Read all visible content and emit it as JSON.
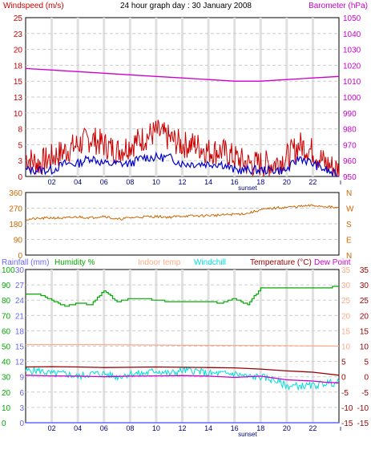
{
  "header": {
    "title": "24 hour graph day : 30 January 2008",
    "windspeed_label": "Windspeed (m/s)",
    "barometer_label": "Barometer (hPa)"
  },
  "colors": {
    "windspeed": "#cc0000",
    "wind_avg": "#0000cc",
    "barometer": "#cc00cc",
    "direction": "#cc6600",
    "rainfall": "#6666ff",
    "humidity": "#00aa00",
    "indoor": "#ffaa88",
    "windchill": "#00dddd",
    "temperature": "#990000",
    "dewpoint": "#cc00cc",
    "grid": "#cccccc",
    "axis_text": "#000080"
  },
  "chart_data": [
    {
      "type": "line",
      "title": "24 hour graph day : 30 January 2008",
      "x_ticks": [
        "02",
        "04",
        "06",
        "08",
        "10",
        "12",
        "14",
        "16",
        "18",
        "20",
        "22"
      ],
      "x_sunrise_sunset": [
        "sunset"
      ],
      "ylabel_left": "Windspeed (m/s)",
      "ylim_left": [
        0,
        25
      ],
      "yticks_left": [
        "25",
        "23",
        "20",
        "18",
        "15",
        "13",
        "10",
        "8",
        "5",
        "3",
        "0"
      ],
      "ylabel_right": "Barometer (hPa)",
      "ylim_right": [
        950,
        1050
      ],
      "yticks_right": [
        "1050",
        "1040",
        "1030",
        "1020",
        "1010",
        "1000",
        "990",
        "980",
        "970",
        "960",
        "950"
      ],
      "series": [
        {
          "name": "Windspeed (m/s)",
          "role": "gust",
          "hours": [
            0,
            1,
            2,
            3,
            4,
            5,
            6,
            7,
            8,
            9,
            10,
            11,
            12,
            13,
            14,
            15,
            16,
            17,
            18,
            19,
            20,
            21,
            22,
            23,
            24
          ],
          "values": [
            3,
            2,
            3,
            4,
            5,
            6,
            5,
            4,
            5,
            6,
            7,
            6,
            5,
            5,
            4,
            4,
            3,
            2,
            2,
            2,
            3,
            5,
            4,
            2,
            1
          ]
        },
        {
          "name": "Windspeed (m/s)",
          "role": "average",
          "hours": [
            0,
            1,
            2,
            3,
            4,
            5,
            6,
            7,
            8,
            9,
            10,
            11,
            12,
            13,
            14,
            15,
            16,
            17,
            18,
            19,
            20,
            21,
            22,
            23,
            24
          ],
          "values": [
            1,
            1,
            1,
            2,
            2,
            3,
            2,
            2,
            2,
            3,
            3,
            3,
            2,
            2,
            2,
            2,
            1,
            1,
            1,
            1,
            1,
            3,
            2,
            1,
            0
          ]
        },
        {
          "name": "Barometer (hPa)",
          "hours": [
            0,
            2,
            4,
            6,
            8,
            10,
            12,
            14,
            16,
            17,
            18,
            20,
            22,
            24
          ],
          "values": [
            1018,
            1017,
            1016,
            1015,
            1014,
            1013,
            1012,
            1011,
            1010,
            1010,
            1010,
            1011,
            1012,
            1013
          ]
        }
      ]
    },
    {
      "type": "line",
      "x_ticks": [],
      "ylim_left": [
        0,
        360
      ],
      "yticks_left": [
        "360",
        "270",
        "180",
        "90",
        "0"
      ],
      "yticks_right": [
        "N",
        "W",
        "S",
        "E",
        "N"
      ],
      "series": [
        {
          "name": "Wind direction",
          "hours": [
            0,
            1,
            2,
            3,
            4,
            5,
            6,
            7,
            8,
            9,
            10,
            11,
            12,
            13,
            14,
            15,
            16,
            17,
            18,
            19,
            20,
            21,
            22,
            23,
            24
          ],
          "values": [
            205,
            210,
            215,
            212,
            220,
            215,
            225,
            205,
            215,
            220,
            222,
            218,
            225,
            225,
            228,
            230,
            235,
            240,
            260,
            270,
            275,
            280,
            285,
            280,
            270
          ]
        }
      ]
    },
    {
      "type": "line",
      "x_ticks": [
        "02",
        "04",
        "06",
        "08",
        "10",
        "12",
        "14",
        "16",
        "18",
        "20",
        "22"
      ],
      "x_sunrise_sunset": [
        "sunset"
      ],
      "legend": [
        "Rainfall (mm)",
        "Humidity %",
        "Indoor temp",
        "Windchill",
        "Temperature (°C)",
        "Dew Point"
      ],
      "yticks_humidity": [
        "100",
        "90",
        "80",
        "70",
        "60",
        "50",
        "40",
        "30",
        "20",
        "10",
        "0"
      ],
      "yticks_rain": [
        "30",
        "27",
        "24",
        "21",
        "18",
        "15",
        "12",
        "9",
        "6",
        "3",
        "0"
      ],
      "yticks_temp": [
        "35",
        "30",
        "25",
        "20",
        "15",
        "10",
        "5",
        "0",
        "-5",
        "-10",
        "-15"
      ],
      "ylim_humidity": [
        0,
        100
      ],
      "ylim_temp": [
        -15,
        35
      ],
      "series": [
        {
          "name": "Humidity %",
          "hours": [
            0,
            1,
            2,
            3,
            4,
            5,
            6,
            7,
            8,
            9,
            10,
            11,
            12,
            13,
            14,
            15,
            16,
            17,
            18,
            19,
            20,
            21,
            22,
            23,
            24
          ],
          "values": [
            84,
            84,
            80,
            76,
            78,
            77,
            86,
            79,
            81,
            81,
            80,
            79,
            79,
            79,
            79,
            78,
            81,
            77,
            88,
            88,
            88,
            88,
            88,
            88,
            89
          ]
        },
        {
          "name": "Rainfall (mm)",
          "hours": [
            0,
            24
          ],
          "values": [
            0,
            0
          ]
        },
        {
          "name": "Indoor temp",
          "hours": [
            0,
            6,
            12,
            18,
            24
          ],
          "values": [
            10.5,
            10.5,
            10.3,
            10.2,
            10.0
          ]
        },
        {
          "name": "Windchill",
          "hours": [
            0,
            1,
            2,
            3,
            4,
            5,
            6,
            7,
            8,
            9,
            10,
            11,
            12,
            13,
            14,
            15,
            16,
            17,
            18,
            19,
            20,
            21,
            22,
            23,
            24
          ],
          "values": [
            2,
            2,
            1,
            1,
            0,
            1,
            1,
            0,
            1,
            1,
            2,
            1,
            2,
            2,
            1,
            1,
            1,
            0,
            0,
            -1,
            -3,
            -3,
            -3,
            -2,
            -2
          ]
        },
        {
          "name": "Temperature (°C)",
          "hours": [
            0,
            2,
            4,
            6,
            8,
            10,
            12,
            14,
            16,
            18,
            20,
            22,
            23,
            24
          ],
          "values": [
            3.2,
            3.3,
            3.2,
            3.0,
            3.1,
            3.2,
            3.1,
            3.0,
            2.9,
            2.5,
            1.9,
            1.5,
            1.0,
            0.5
          ]
        },
        {
          "name": "Dew Point",
          "hours": [
            0,
            2,
            4,
            6,
            8,
            10,
            12,
            14,
            16,
            18,
            20,
            22,
            23,
            24
          ],
          "values": [
            0.5,
            0.3,
            0.2,
            0.0,
            0.2,
            0.3,
            0.4,
            0.2,
            -0.2,
            0.2,
            -1.0,
            -1.4,
            -1.8,
            -2.0
          ]
        }
      ]
    }
  ]
}
